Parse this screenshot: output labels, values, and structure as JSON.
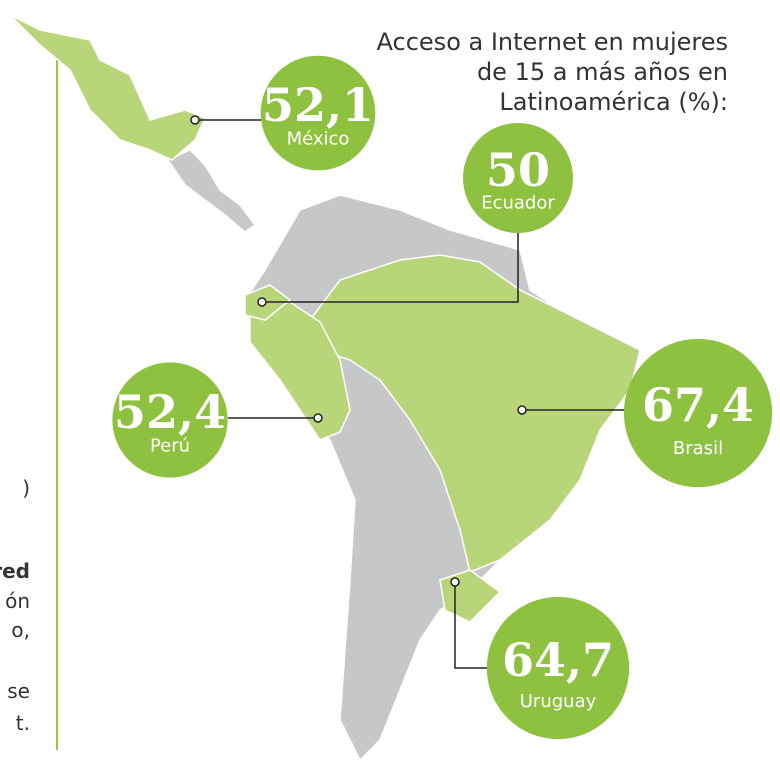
{
  "title_lines": [
    "Acceso a Internet en mujeres",
    "de 15 a más años en",
    "Latinoamérica (%):"
  ],
  "countries": [
    {
      "name": "México",
      "value": 52.1,
      "value_label": "52,1"
    },
    {
      "name": "Ecuador",
      "value": 50,
      "value_label": "50"
    },
    {
      "name": "Perú",
      "value": 52.4,
      "value_label": "52,4"
    },
    {
      "name": "Brasil",
      "value": 67.4,
      "value_label": "67,4"
    },
    {
      "name": "Uruguay",
      "value": 64.7,
      "value_label": "64,7"
    }
  ],
  "side_text_fragments": [
    ")",
    "red",
    "ón",
    "o,",
    "se",
    "t."
  ]
}
